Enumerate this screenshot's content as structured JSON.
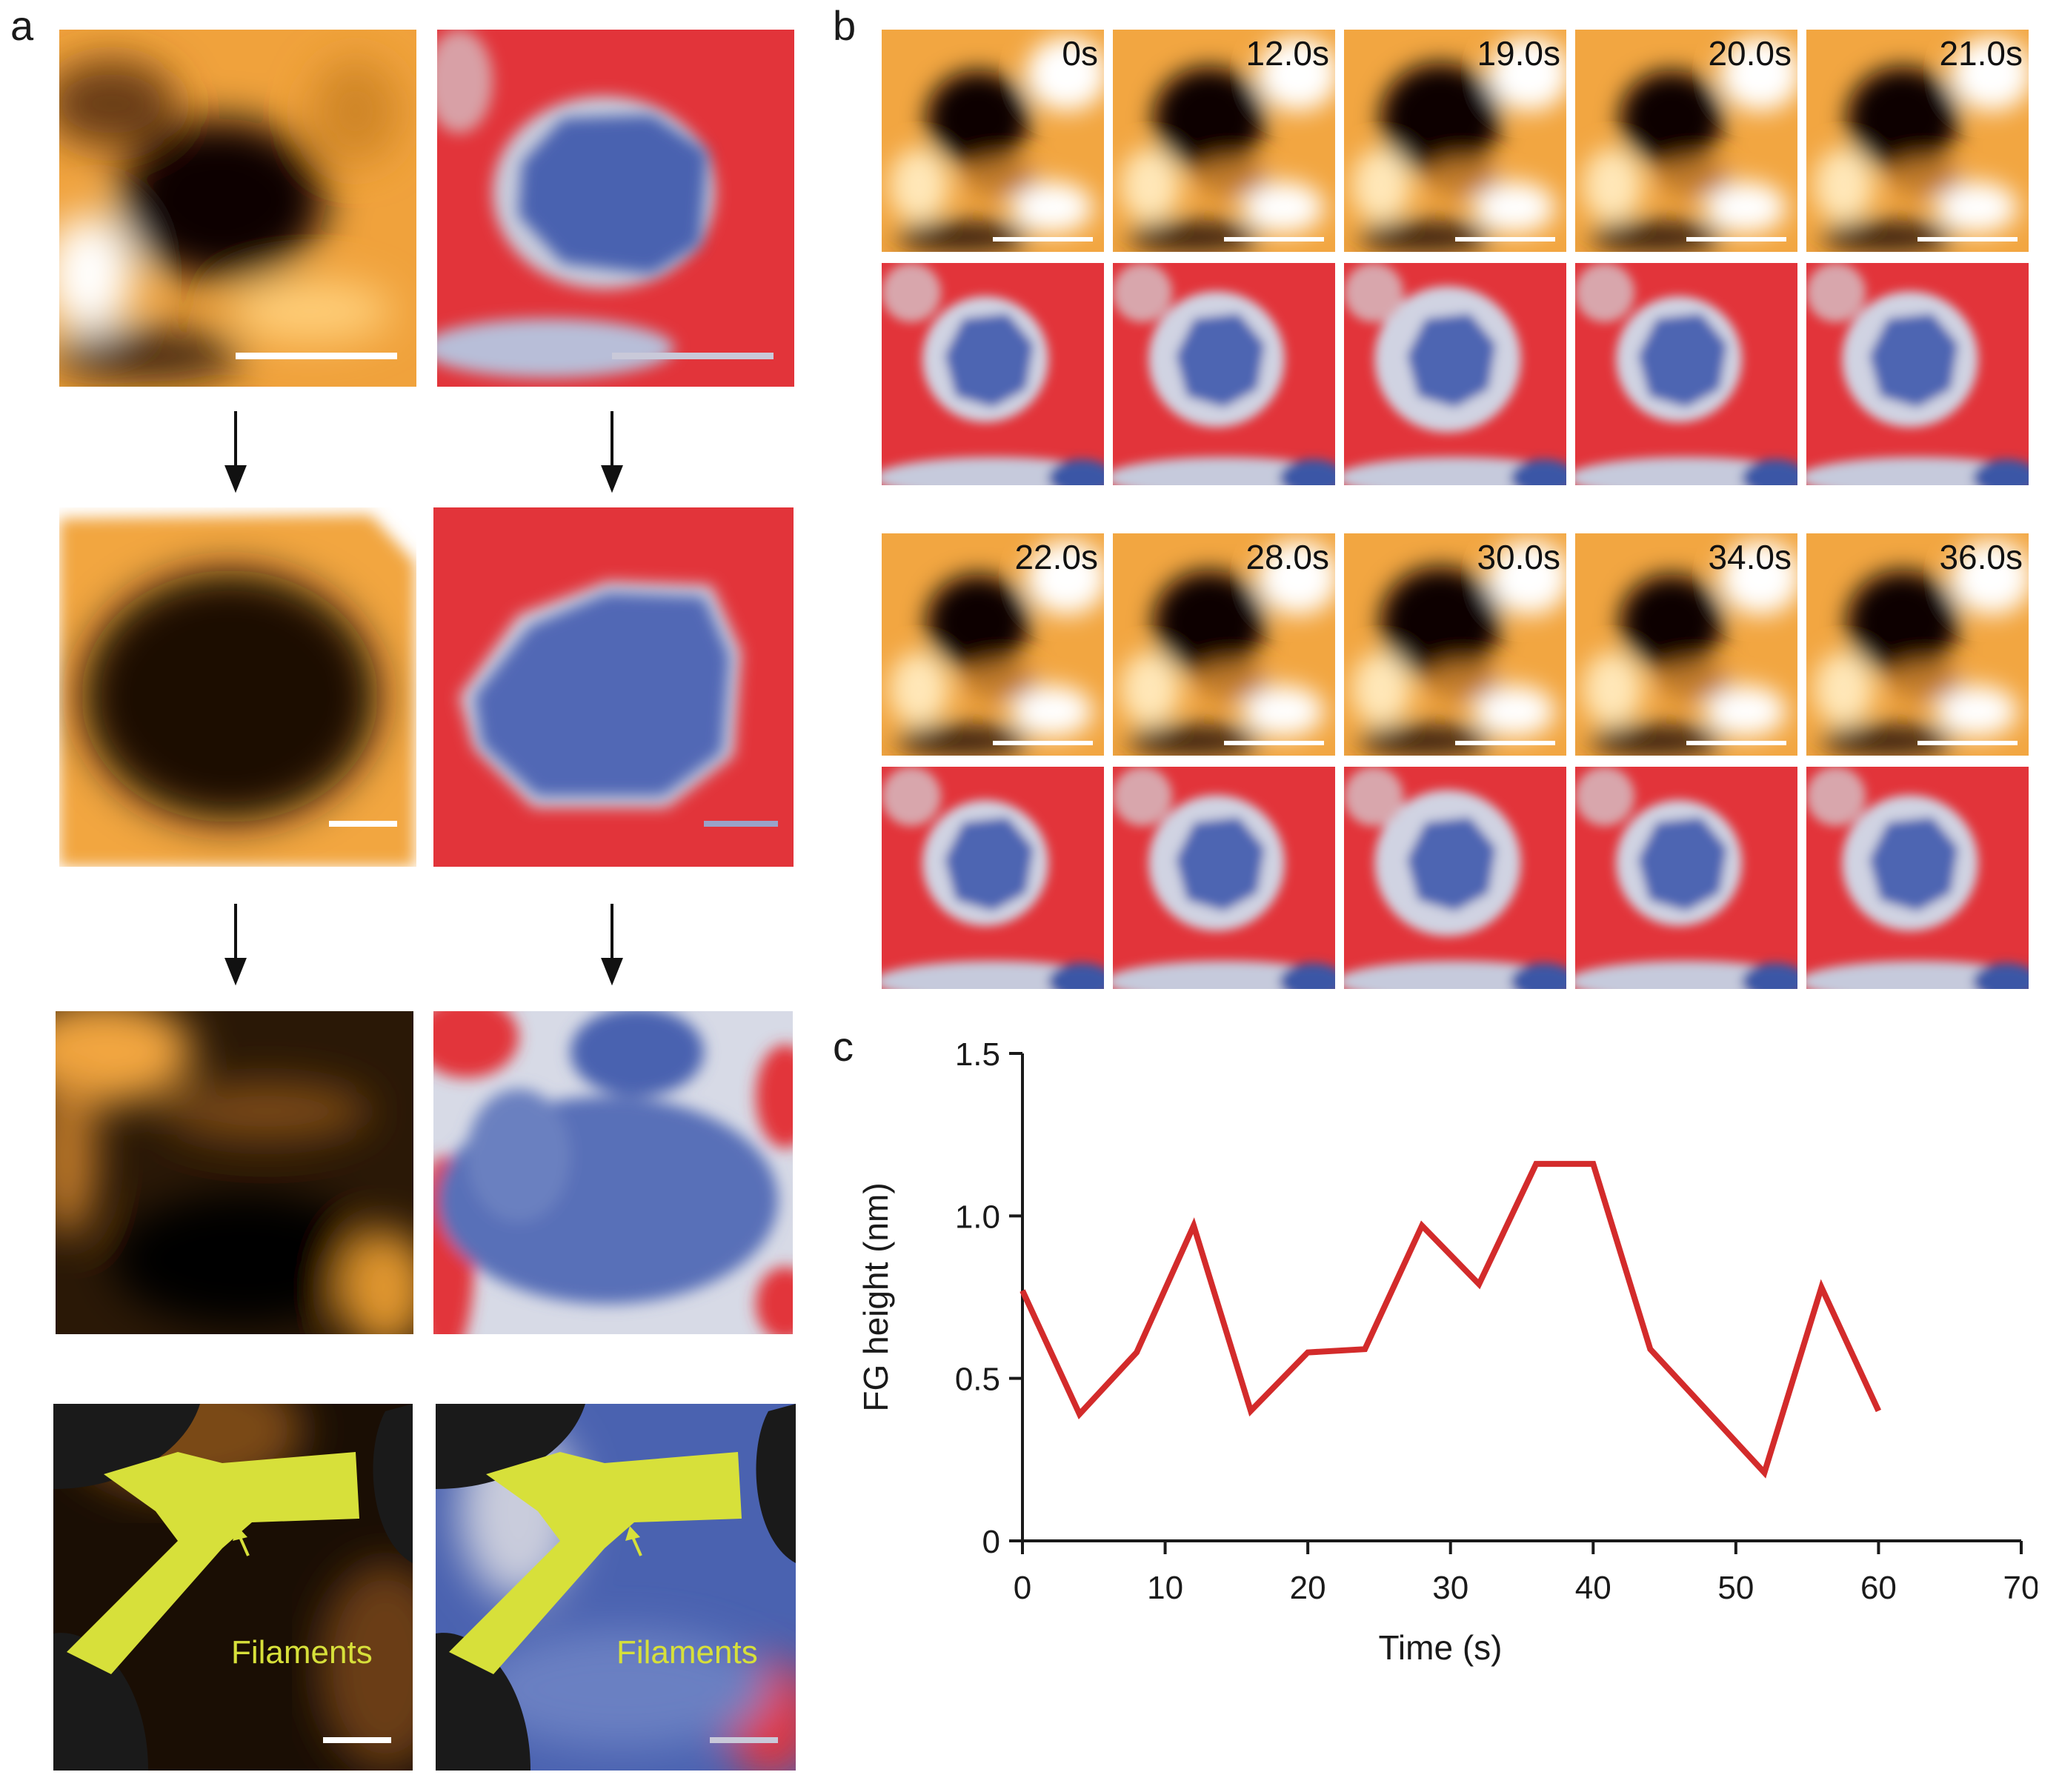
{
  "panel_labels": {
    "a": "a",
    "b": "b",
    "c": "c"
  },
  "panel_a": {
    "filament_label": "Filaments"
  },
  "panel_b": {
    "frame_times_row1": [
      "0s",
      "12.0s",
      "19.0s",
      "20.0s",
      "21.0s"
    ],
    "frame_times_row2": [
      "22.0s",
      "28.0s",
      "30.0s",
      "34.0s",
      "36.0s"
    ]
  },
  "chart_data": {
    "type": "line",
    "title": "",
    "xlabel": "Time (s)",
    "ylabel": "FG height (nm)",
    "xlim": [
      0,
      70
    ],
    "ylim": [
      0,
      1.5
    ],
    "x_ticks": [
      "0",
      "10",
      "20",
      "30",
      "40",
      "50",
      "60",
      "70"
    ],
    "y_ticks": [
      "0",
      "0.5",
      "1.0",
      "1.5"
    ],
    "series": [
      {
        "name": "FG height",
        "color": "#d32b2b",
        "x": [
          0,
          4,
          8,
          12,
          16,
          20,
          24,
          28,
          32,
          36,
          40,
          44,
          48,
          52,
          56,
          60
        ],
        "y": [
          0.77,
          0.39,
          0.58,
          0.97,
          0.4,
          0.58,
          0.59,
          0.97,
          0.79,
          1.16,
          1.16,
          0.59,
          0.4,
          0.21,
          0.78,
          0.4
        ]
      }
    ]
  },
  "colors": {
    "afm_orange": "#f2a641",
    "afm_dark": "#0d0803",
    "map_red": "#e2343a",
    "map_blue": "#3b57a6",
    "filament": "#d7e03a",
    "line": "#d32b2b"
  }
}
